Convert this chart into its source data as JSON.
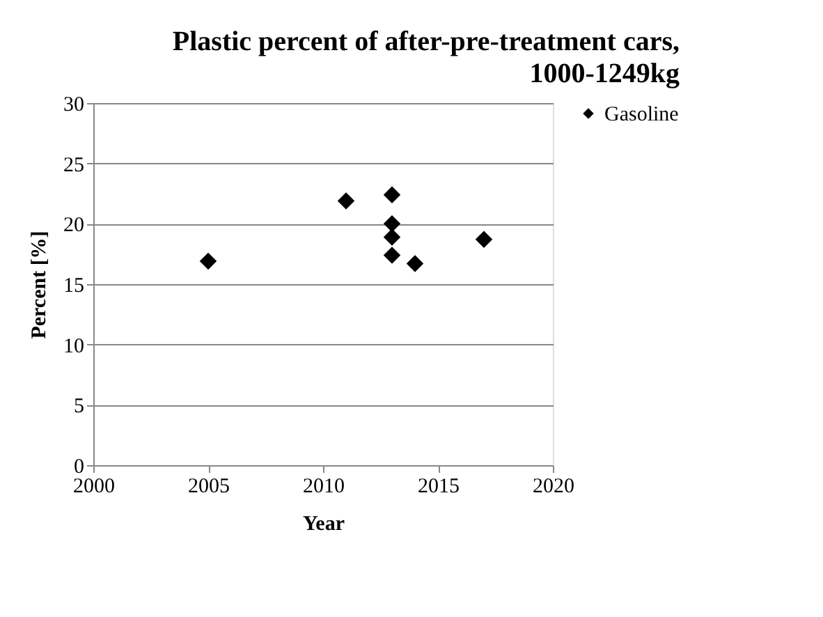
{
  "chart_data": {
    "type": "scatter",
    "title": "Plastic percent of after-pre-treatment cars, 1000-1249kg",
    "xlabel": "Year",
    "ylabel": "Percent [%]",
    "x": [
      2005,
      2011,
      2013,
      2013,
      2013,
      2013,
      2014,
      2017
    ],
    "series": [
      {
        "name": "Gasoline",
        "color": "#000000",
        "values": [
          16.9,
          21.9,
          22.4,
          20.0,
          18.9,
          17.4,
          16.7,
          18.7
        ]
      }
    ],
    "xlim": [
      2000,
      2020
    ],
    "xticks": [
      2000,
      2005,
      2010,
      2015,
      2020
    ],
    "ylim": [
      0,
      30
    ],
    "yticks": [
      0,
      5,
      10,
      15,
      20,
      25,
      30
    ],
    "grid": "y",
    "legend": "right",
    "marker": "diamond"
  }
}
